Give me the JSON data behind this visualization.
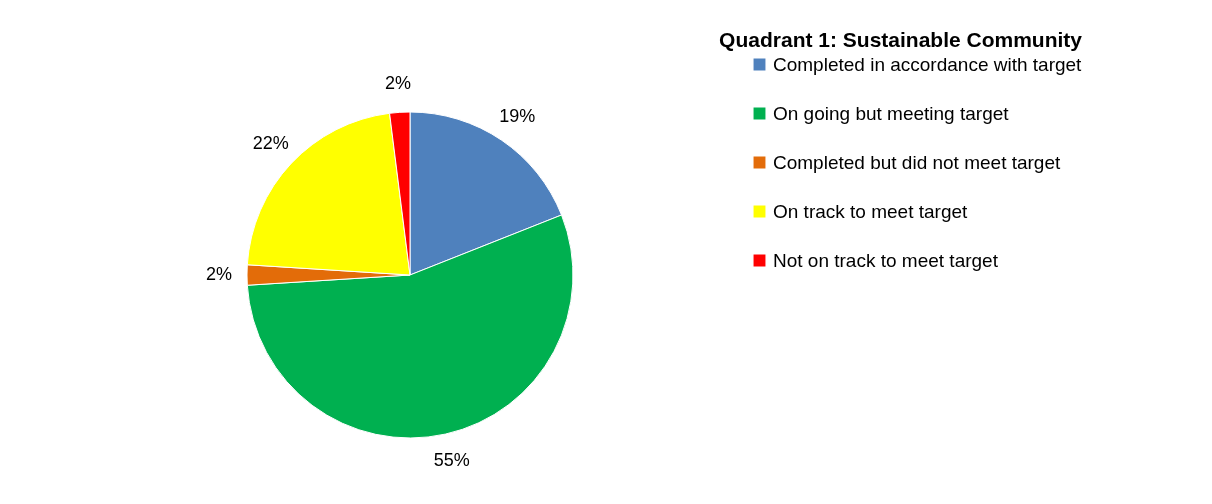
{
  "chart_data": {
    "type": "pie",
    "title": "Quadrant 1: Sustainable Community",
    "categories": [
      "Completed in accordance with target",
      "On going but meeting target",
      "Completed but did not meet target",
      "On track to meet target",
      "Not on track to meet target"
    ],
    "values": [
      19,
      55,
      2,
      22,
      2
    ],
    "value_labels": [
      "19%",
      "55%",
      "2%",
      "22%",
      "2%"
    ],
    "colors": [
      "#4f81bd",
      "#00b050",
      "#e36c09",
      "#ffff00",
      "#ff0000"
    ],
    "legend": "right"
  }
}
